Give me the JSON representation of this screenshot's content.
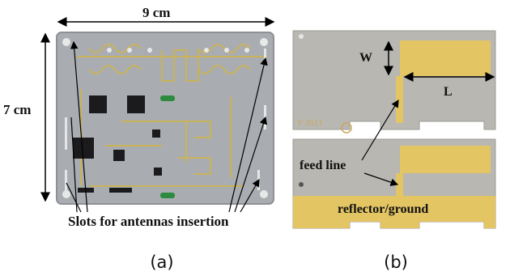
{
  "panel_a": {
    "dim_width": "9 cm",
    "dim_height": "7 cm",
    "slots_label": "Slots for antennas insertion",
    "caption": "(a)"
  },
  "panel_b": {
    "label_w": "W",
    "label_l": "L",
    "feed_label": "feed line",
    "ground_label": "reflector/ground",
    "marking": "F 3511",
    "caption": "(b)"
  },
  "colors": {
    "board": "#a9adb1",
    "trace": "#c9b35a",
    "gold": "#e3c563",
    "chip": "#1b1b1d",
    "antenna_board": "#b8b7b2"
  }
}
